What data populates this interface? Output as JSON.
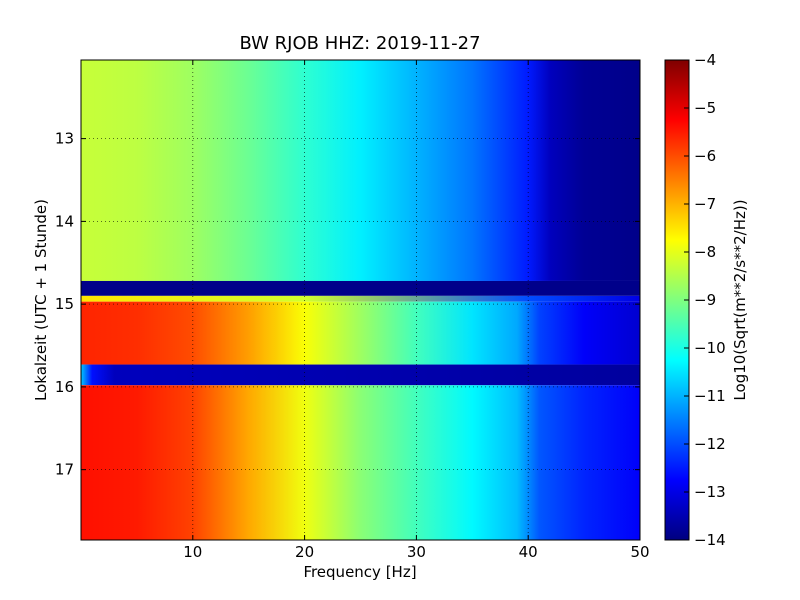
{
  "chart_data": {
    "type": "heatmap",
    "title": "BW RJOB HHZ: 2019-11-27",
    "xlabel": "Frequency [Hz]",
    "ylabel": "Lokalzeit (UTC + 1 Stunde)",
    "xlim": [
      0,
      50
    ],
    "ylim": [
      17.85,
      12.05
    ],
    "y_axis_inverted": true,
    "x_ticks": [
      10,
      20,
      30,
      40,
      50
    ],
    "x_tick_labels": [
      "10",
      "20",
      "30",
      "40",
      "50"
    ],
    "y_ticks": [
      13,
      14,
      15,
      16,
      17
    ],
    "y_tick_labels": [
      "13",
      "14",
      "15",
      "16",
      "17"
    ],
    "grid": true,
    "colormap": "jet",
    "colorbar": {
      "label": "Log10(Sqrt(m**2/s**2/Hz))",
      "range": [
        -14,
        -4
      ],
      "ticks": [
        -4,
        -5,
        -6,
        -7,
        -8,
        -9,
        -10,
        -11,
        -12,
        -13,
        -14
      ],
      "tick_labels": [
        "−4",
        "−5",
        "−6",
        "−7",
        "−8",
        "−9",
        "−10",
        "−11",
        "−12",
        "−13",
        "−14"
      ]
    },
    "time_segments": [
      {
        "start": 12.05,
        "end": 14.72,
        "psd_profile": [
          [
            0,
            -8.3
          ],
          [
            5,
            -8.4
          ],
          [
            10,
            -8.7
          ],
          [
            15,
            -9.2
          ],
          [
            20,
            -9.8
          ],
          [
            25,
            -10.4
          ],
          [
            30,
            -11.0
          ],
          [
            35,
            -11.6
          ],
          [
            40,
            -12.5
          ],
          [
            42,
            -13.4
          ],
          [
            45,
            -13.8
          ],
          [
            50,
            -13.9
          ]
        ]
      },
      {
        "start": 14.72,
        "end": 14.9,
        "psd_profile": [
          [
            0,
            -13.9
          ],
          [
            50,
            -13.9
          ]
        ]
      },
      {
        "start": 14.9,
        "end": 14.97,
        "psd_profile": [
          [
            0,
            -7.5
          ],
          [
            20,
            -8.2
          ],
          [
            40,
            -12.0
          ],
          [
            50,
            -13.0
          ]
        ]
      },
      {
        "start": 14.97,
        "end": 15.73,
        "psd_profile": [
          [
            0,
            -5.6
          ],
          [
            5,
            -5.7
          ],
          [
            10,
            -6.0
          ],
          [
            15,
            -6.8
          ],
          [
            20,
            -7.8
          ],
          [
            25,
            -8.7
          ],
          [
            30,
            -9.6
          ],
          [
            35,
            -10.5
          ],
          [
            39,
            -11.1
          ],
          [
            41,
            -12.1
          ],
          [
            45,
            -12.8
          ],
          [
            50,
            -13.2
          ]
        ]
      },
      {
        "start": 15.73,
        "end": 15.98,
        "psd_profile": [
          [
            0,
            -10.8
          ],
          [
            1,
            -12.6
          ],
          [
            3,
            -13.4
          ],
          [
            50,
            -13.7
          ]
        ]
      },
      {
        "start": 15.98,
        "end": 17.85,
        "psd_profile": [
          [
            0,
            -5.4
          ],
          [
            5,
            -5.5
          ],
          [
            10,
            -5.9
          ],
          [
            15,
            -6.9
          ],
          [
            20,
            -7.9
          ],
          [
            25,
            -8.9
          ],
          [
            30,
            -9.6
          ],
          [
            35,
            -10.3
          ],
          [
            39,
            -10.9
          ],
          [
            41,
            -11.9
          ],
          [
            45,
            -12.4
          ],
          [
            50,
            -12.8
          ]
        ]
      }
    ]
  }
}
